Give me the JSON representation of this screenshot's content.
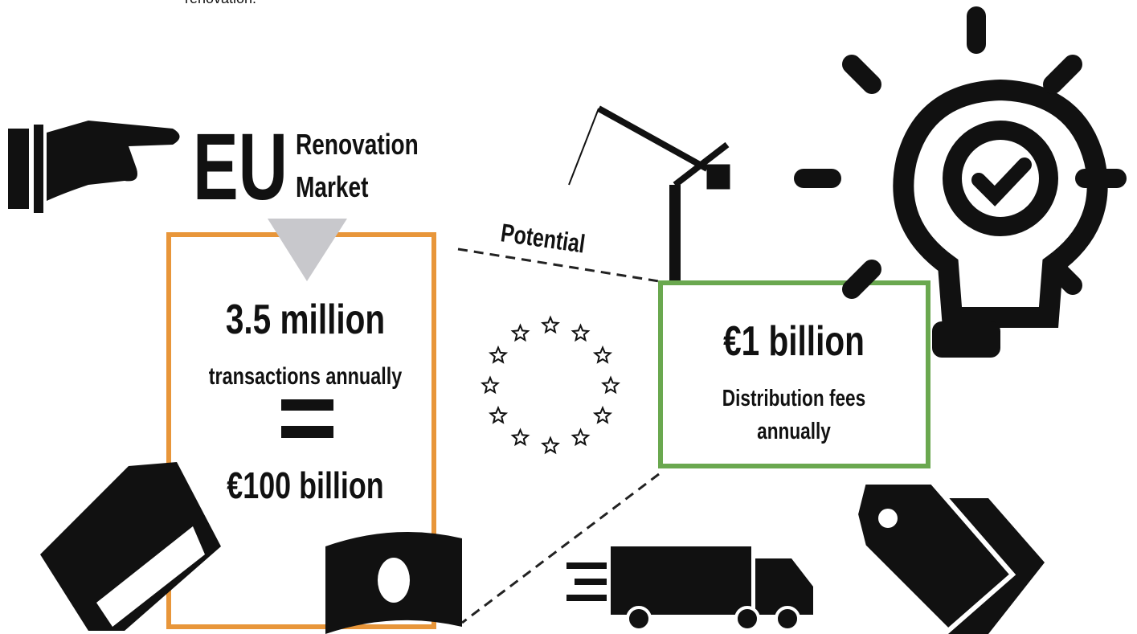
{
  "top_fragment": "renovation.",
  "heading": {
    "big": "EU",
    "line1": "Renovation",
    "line2": "Market"
  },
  "left_box": {
    "value": "3.5 million",
    "label": "transactions annually",
    "total": "€100 billion"
  },
  "connector_label": "Potential",
  "right_box": {
    "value": "€1 billion",
    "label_line1": "Distribution fees",
    "label_line2": "annually"
  }
}
